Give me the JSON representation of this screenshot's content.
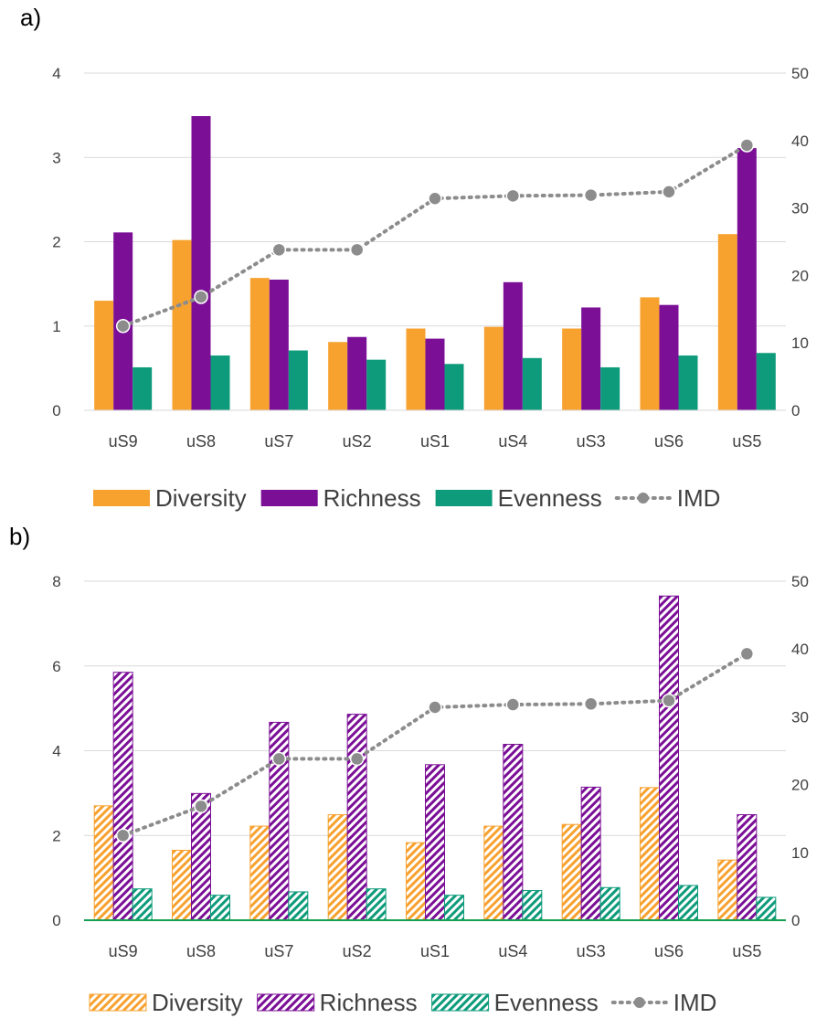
{
  "colors": {
    "diversity": "#f7a12f",
    "richness": "#7b0f96",
    "evenness": "#0e9b7b",
    "imd": "#8c8c8c",
    "axis_line_b": "#14a050",
    "gridline": "#d9d9d9"
  },
  "chart_data": [
    {
      "panel_label": "a)",
      "type": "bar",
      "bar_style": "solid",
      "categories": [
        "uS9",
        "uS8",
        "uS7",
        "uS2",
        "uS1",
        "uS4",
        "uS3",
        "uS6",
        "uS5"
      ],
      "series": [
        {
          "name": "Diversity",
          "axis": "left",
          "values": [
            1.3,
            2.02,
            1.57,
            0.81,
            0.97,
            0.99,
            0.97,
            1.34,
            2.09
          ]
        },
        {
          "name": "Richness",
          "axis": "left",
          "values": [
            2.11,
            3.49,
            1.55,
            0.87,
            0.85,
            1.52,
            1.22,
            1.25,
            3.11
          ]
        },
        {
          "name": "Evenness",
          "axis": "left",
          "values": [
            0.51,
            0.65,
            0.71,
            0.6,
            0.55,
            0.62,
            0.51,
            0.65,
            0.68
          ]
        },
        {
          "name": "IMD",
          "axis": "right",
          "type": "line",
          "values": [
            12.5,
            16.8,
            23.8,
            23.8,
            31.4,
            31.8,
            31.9,
            32.4,
            39.3
          ]
        }
      ],
      "ylim": [
        0,
        4
      ],
      "yticks": [
        "0",
        "1",
        "2",
        "3",
        "4"
      ],
      "y2lim": [
        0,
        50
      ],
      "y2ticks": [
        "0",
        "10",
        "20",
        "30",
        "40",
        "50"
      ],
      "grid": true,
      "legend_position": "bottom"
    },
    {
      "panel_label": "b)",
      "type": "bar",
      "bar_style": "hatched",
      "categories": [
        "uS9",
        "uS8",
        "uS7",
        "uS2",
        "uS1",
        "uS4",
        "uS3",
        "uS6",
        "uS5"
      ],
      "series": [
        {
          "name": "Diversity",
          "axis": "left",
          "values": [
            2.7,
            1.65,
            2.22,
            2.49,
            1.83,
            2.22,
            2.26,
            3.13,
            1.42
          ]
        },
        {
          "name": "Richness",
          "axis": "left",
          "values": [
            5.85,
            2.99,
            4.67,
            4.86,
            3.67,
            4.15,
            3.14,
            7.65,
            2.49
          ]
        },
        {
          "name": "Evenness",
          "axis": "left",
          "values": [
            0.74,
            0.59,
            0.67,
            0.74,
            0.59,
            0.7,
            0.77,
            0.82,
            0.54
          ]
        },
        {
          "name": "IMD",
          "axis": "right",
          "type": "line",
          "values": [
            12.5,
            16.8,
            23.8,
            23.8,
            31.4,
            31.8,
            31.9,
            32.4,
            39.3
          ]
        }
      ],
      "ylim": [
        0,
        8
      ],
      "yticks": [
        "0",
        "2",
        "4",
        "6",
        "8"
      ],
      "y2lim": [
        0,
        50
      ],
      "y2ticks": [
        "0",
        "10",
        "20",
        "30",
        "40",
        "50"
      ],
      "grid": true,
      "legend_position": "bottom"
    }
  ]
}
